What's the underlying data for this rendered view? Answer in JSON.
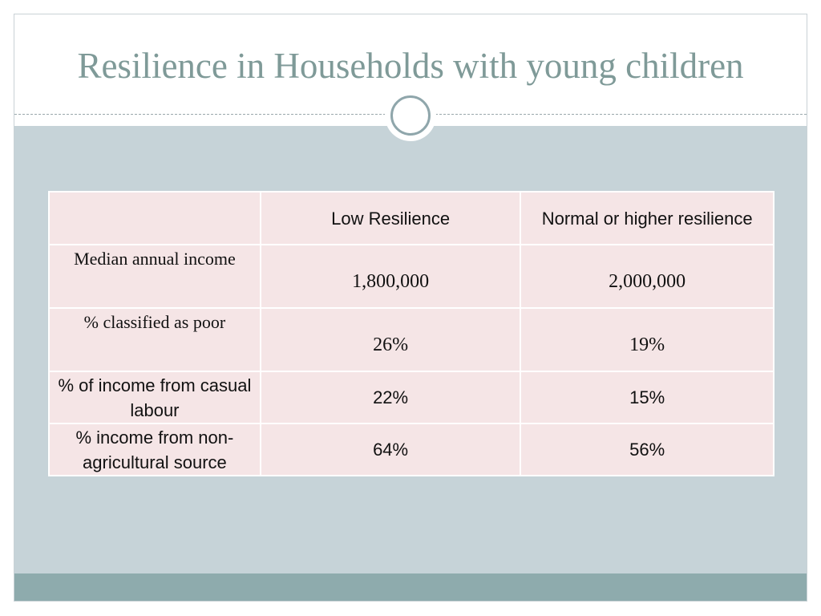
{
  "slide": {
    "title": "Resilience in Households with young children"
  },
  "table": {
    "headers": [
      "",
      "Low Resilience",
      "Normal or higher resilience"
    ],
    "rows": [
      {
        "label": "Median annual income",
        "low": "1,800,000",
        "normal": "2,000,000"
      },
      {
        "label": "% classified as poor",
        "low": "26%",
        "normal": "19%"
      },
      {
        "label": "% of income from casual labour",
        "low": "22%",
        "normal": "15%"
      },
      {
        "label": "% income from non-agricultural source",
        "low": "64%",
        "normal": "56%"
      }
    ]
  },
  "colors": {
    "title": "#7f9a98",
    "body_background": "#c6d3d8",
    "bottom_band": "#8eabad",
    "table_fill": "#f5e5e6"
  }
}
